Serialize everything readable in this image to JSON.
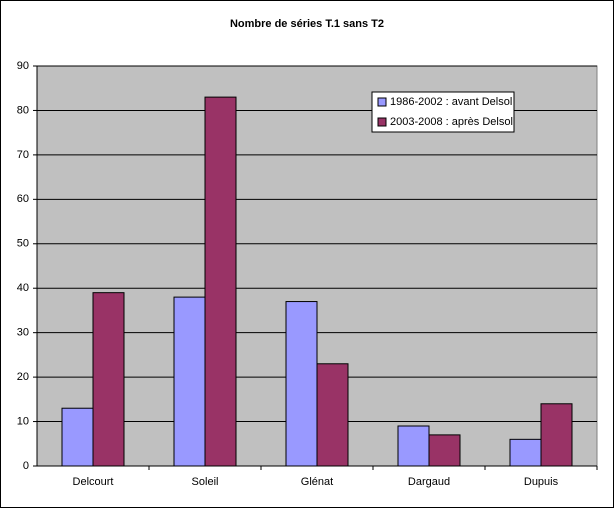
{
  "chart_data": {
    "type": "bar",
    "title": "Nombre de séries T.1 sans T2",
    "categories": [
      "Delcourt",
      "Soleil",
      "Glénat",
      "Dargaud",
      "Dupuis"
    ],
    "series": [
      {
        "name": "1986-2002 : avant Delsol",
        "color": "#9999ff",
        "values": [
          13,
          38,
          37,
          9,
          6
        ]
      },
      {
        "name": "2003-2008 : après Delsol",
        "color": "#993366",
        "values": [
          39,
          83,
          23,
          7,
          14
        ]
      }
    ],
    "ylim": [
      0,
      90
    ],
    "yticks": [
      0,
      10,
      20,
      30,
      40,
      50,
      60,
      70,
      80,
      90
    ],
    "grid": true
  }
}
